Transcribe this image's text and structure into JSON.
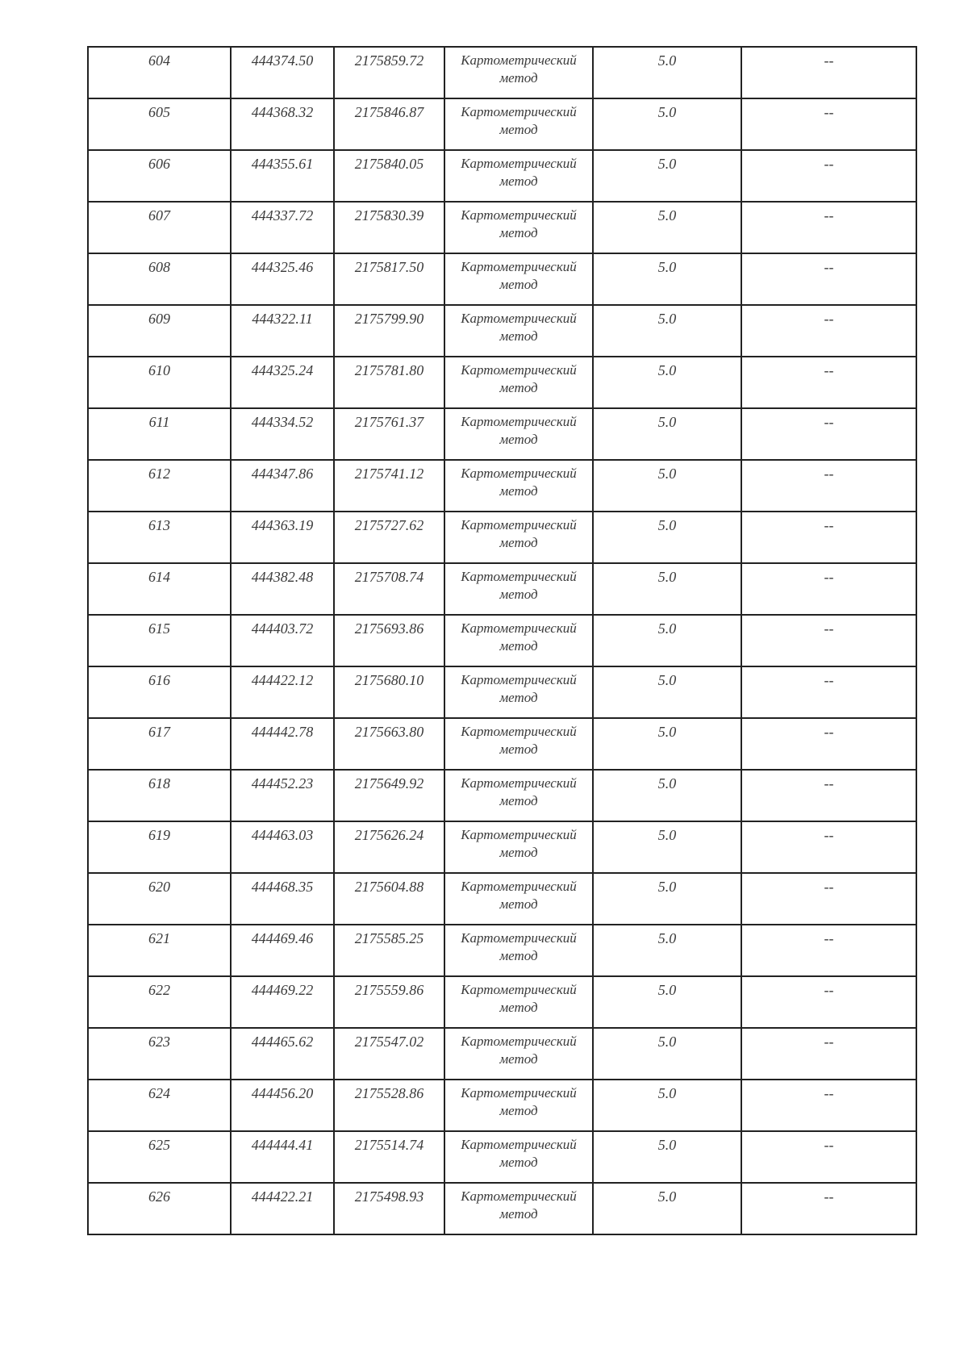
{
  "table": {
    "rows": [
      {
        "n": "604",
        "x": "444374.50",
        "y": "2175859.72",
        "method": "Картометрический метод",
        "accuracy": "5.0",
        "note": "--"
      },
      {
        "n": "605",
        "x": "444368.32",
        "y": "2175846.87",
        "method": "Картометрический метод",
        "accuracy": "5.0",
        "note": "--"
      },
      {
        "n": "606",
        "x": "444355.61",
        "y": "2175840.05",
        "method": "Картометрический метод",
        "accuracy": "5.0",
        "note": "--"
      },
      {
        "n": "607",
        "x": "444337.72",
        "y": "2175830.39",
        "method": "Картометрический метод",
        "accuracy": "5.0",
        "note": "--"
      },
      {
        "n": "608",
        "x": "444325.46",
        "y": "2175817.50",
        "method": "Картометрический метод",
        "accuracy": "5.0",
        "note": "--"
      },
      {
        "n": "609",
        "x": "444322.11",
        "y": "2175799.90",
        "method": "Картометрический метод",
        "accuracy": "5.0",
        "note": "--"
      },
      {
        "n": "610",
        "x": "444325.24",
        "y": "2175781.80",
        "method": "Картометрический метод",
        "accuracy": "5.0",
        "note": "--"
      },
      {
        "n": "611",
        "x": "444334.52",
        "y": "2175761.37",
        "method": "Картометрический метод",
        "accuracy": "5.0",
        "note": "--"
      },
      {
        "n": "612",
        "x": "444347.86",
        "y": "2175741.12",
        "method": "Картометрический метод",
        "accuracy": "5.0",
        "note": "--"
      },
      {
        "n": "613",
        "x": "444363.19",
        "y": "2175727.62",
        "method": "Картометрический метод",
        "accuracy": "5.0",
        "note": "--"
      },
      {
        "n": "614",
        "x": "444382.48",
        "y": "2175708.74",
        "method": "Картометрический метод",
        "accuracy": "5.0",
        "note": "--"
      },
      {
        "n": "615",
        "x": "444403.72",
        "y": "2175693.86",
        "method": "Картометрический метод",
        "accuracy": "5.0",
        "note": "--"
      },
      {
        "n": "616",
        "x": "444422.12",
        "y": "2175680.10",
        "method": "Картометрический метод",
        "accuracy": "5.0",
        "note": "--"
      },
      {
        "n": "617",
        "x": "444442.78",
        "y": "2175663.80",
        "method": "Картометрический метод",
        "accuracy": "5.0",
        "note": "--"
      },
      {
        "n": "618",
        "x": "444452.23",
        "y": "2175649.92",
        "method": "Картометрический метод",
        "accuracy": "5.0",
        "note": "--"
      },
      {
        "n": "619",
        "x": "444463.03",
        "y": "2175626.24",
        "method": "Картометрический метод",
        "accuracy": "5.0",
        "note": "--"
      },
      {
        "n": "620",
        "x": "444468.35",
        "y": "2175604.88",
        "method": "Картометрический метод",
        "accuracy": "5.0",
        "note": "--"
      },
      {
        "n": "621",
        "x": "444469.46",
        "y": "2175585.25",
        "method": "Картометрический метод",
        "accuracy": "5.0",
        "note": "--"
      },
      {
        "n": "622",
        "x": "444469.22",
        "y": "2175559.86",
        "method": "Картометрический метод",
        "accuracy": "5.0",
        "note": "--"
      },
      {
        "n": "623",
        "x": "444465.62",
        "y": "2175547.02",
        "method": "Картометрический метод",
        "accuracy": "5.0",
        "note": "--"
      },
      {
        "n": "624",
        "x": "444456.20",
        "y": "2175528.86",
        "method": "Картометрический метод",
        "accuracy": "5.0",
        "note": "--"
      },
      {
        "n": "625",
        "x": "444444.41",
        "y": "2175514.74",
        "method": "Картометрический метод",
        "accuracy": "5.0",
        "note": "--"
      },
      {
        "n": "626",
        "x": "444422.21",
        "y": "2175498.93",
        "method": "Картометрический метод",
        "accuracy": "5.0",
        "note": "--"
      }
    ]
  }
}
